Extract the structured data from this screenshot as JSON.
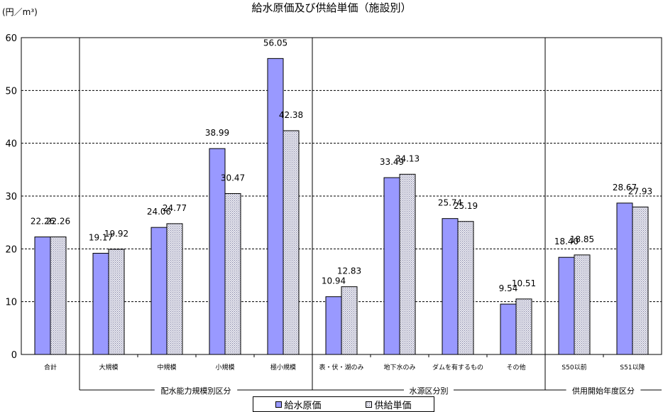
{
  "title": "給水原価及び供給単価（施設別）",
  "unit_label": "(円／m³)",
  "legend": {
    "series1": "給水原価",
    "series2": "供給単価"
  },
  "colors": {
    "series1": "#9999ff",
    "series2_base": "#e8e8f0",
    "series2_dot": "#8080a0",
    "grid": "#000000"
  },
  "chart_data": {
    "type": "bar",
    "title": "給水原価及び供給単価（施設別）",
    "ylabel": "(円／m³)",
    "xlabel": "",
    "ylim": [
      0,
      60
    ],
    "yticks": [
      "0",
      "10",
      "20",
      "30",
      "40",
      "50",
      "60"
    ],
    "grid": "dashed-horizontal",
    "legend_position": "bottom",
    "categories": [
      "合計",
      "大規模",
      "中規模",
      "小規模",
      "極小規模",
      "表・伏・湖のみ",
      "地下水のみ",
      "ダムを有するもの",
      "その他",
      "S50以前",
      "S51以降"
    ],
    "series": [
      {
        "name": "給水原価",
        "values": [
          22.26,
          19.17,
          24.06,
          38.99,
          56.05,
          10.94,
          33.49,
          25.74,
          9.54,
          18.4,
          28.67
        ]
      },
      {
        "name": "供給単価",
        "values": [
          22.26,
          19.92,
          24.77,
          30.47,
          42.38,
          12.83,
          34.13,
          25.19,
          10.51,
          18.85,
          27.93
        ]
      }
    ],
    "value_labels": [
      [
        "22.26",
        "22.26"
      ],
      [
        "19.17",
        "19.92"
      ],
      [
        "24.06",
        "24.77"
      ],
      [
        "38.99",
        "30.47"
      ],
      [
        "56.05",
        "42.38"
      ],
      [
        "10.94",
        "12.83"
      ],
      [
        "33.49",
        "34.13"
      ],
      [
        "25.74",
        "25.19"
      ],
      [
        "9.54",
        "10.51"
      ],
      [
        "18.40",
        "18.85"
      ],
      [
        "28.67",
        "27.93"
      ]
    ],
    "groups": [
      {
        "label": "配水能力規模別区分",
        "start": 1,
        "end": 4
      },
      {
        "label": "水源区分別",
        "start": 5,
        "end": 8
      },
      {
        "label": "供用開始年度区分",
        "start": 9,
        "end": 10
      }
    ]
  }
}
